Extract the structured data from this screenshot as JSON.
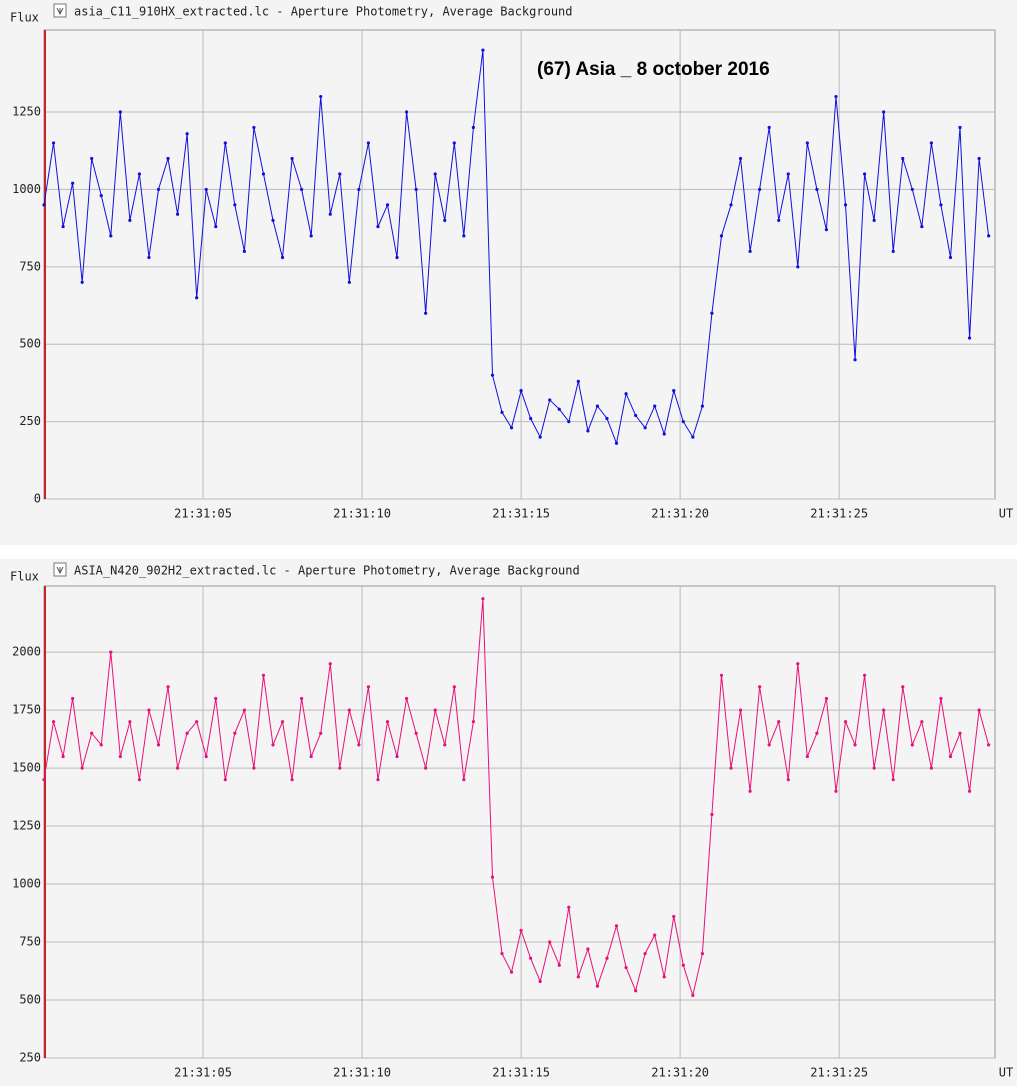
{
  "chart_data": [
    {
      "type": "line",
      "title": "asia_C11_910HX_extracted.lc - Aperture Photometry, Average Background",
      "y_label": "Flux",
      "x_label": "UT",
      "annotation": "(67) Asia _ 8 october 2016",
      "xlim": [
        0,
        29.9
      ],
      "ylim": [
        0,
        1515
      ],
      "xticks": [
        {
          "value": 5,
          "label": "21:31:05"
        },
        {
          "value": 10,
          "label": "21:31:10"
        },
        {
          "value": 15,
          "label": "21:31:15"
        },
        {
          "value": 20,
          "label": "21:31:20"
        },
        {
          "value": 25,
          "label": "21:31:25"
        }
      ],
      "yticks": [
        0,
        250,
        500,
        750,
        1000,
        1250
      ],
      "grid": true,
      "x": [
        0.0,
        0.3,
        0.6,
        0.9,
        1.2,
        1.5,
        1.8,
        2.1,
        2.4,
        2.7,
        3.0,
        3.3,
        3.6,
        3.9,
        4.2,
        4.5,
        4.8,
        5.1,
        5.4,
        5.7,
        6.0,
        6.3,
        6.6,
        6.9,
        7.2,
        7.5,
        7.8,
        8.1,
        8.4,
        8.7,
        9.0,
        9.3,
        9.6,
        9.9,
        10.2,
        10.5,
        10.8,
        11.1,
        11.4,
        11.7,
        12.0,
        12.3,
        12.6,
        12.9,
        13.2,
        13.5,
        13.8,
        14.1,
        14.4,
        14.7,
        15.0,
        15.3,
        15.6,
        15.9,
        16.2,
        16.5,
        16.8,
        17.1,
        17.4,
        17.7,
        18.0,
        18.3,
        18.6,
        18.9,
        19.2,
        19.5,
        19.8,
        20.1,
        20.4,
        20.7,
        21.0,
        21.3,
        21.6,
        21.9,
        22.2,
        22.5,
        22.8,
        23.1,
        23.4,
        23.7,
        24.0,
        24.3,
        24.6,
        24.9,
        25.2,
        25.5,
        25.8,
        26.1,
        26.4,
        26.7,
        27.0,
        27.3,
        27.6,
        27.9,
        28.2,
        28.5,
        28.8,
        29.1,
        29.4,
        29.7
      ],
      "series": [
        {
          "color": "#1010dd",
          "values": [
            950,
            1150,
            880,
            1020,
            700,
            1100,
            980,
            850,
            1250,
            900,
            1050,
            780,
            1000,
            1100,
            920,
            1180,
            650,
            1000,
            880,
            1150,
            950,
            800,
            1200,
            1050,
            900,
            780,
            1100,
            1000,
            850,
            1300,
            920,
            1050,
            700,
            1000,
            1150,
            880,
            950,
            780,
            1250,
            1000,
            600,
            1050,
            900,
            1150,
            850,
            1200,
            1450,
            400,
            280,
            230,
            350,
            260,
            200,
            320,
            290,
            250,
            380,
            220,
            300,
            260,
            180,
            340,
            270,
            230,
            300,
            210,
            350,
            250,
            200,
            300,
            600,
            850,
            950,
            1100,
            800,
            1000,
            1200,
            900,
            1050,
            750,
            1150,
            1000,
            870,
            1300,
            950,
            450,
            1050,
            900,
            1250,
            800,
            1100,
            1000,
            880,
            1150,
            950,
            780,
            1200,
            520,
            1100,
            850
          ]
        }
      ]
    },
    {
      "type": "line",
      "title": "ASIA_N420_902H2_extracted.lc - Aperture Photometry, Average Background",
      "y_label": "Flux",
      "x_label": "UT",
      "xlim": [
        0,
        29.9
      ],
      "ylim": [
        250,
        2285
      ],
      "xticks": [
        {
          "value": 5,
          "label": "21:31:05"
        },
        {
          "value": 10,
          "label": "21:31:10"
        },
        {
          "value": 15,
          "label": "21:31:15"
        },
        {
          "value": 20,
          "label": "21:31:20"
        },
        {
          "value": 25,
          "label": "21:31:25"
        }
      ],
      "yticks": [
        250,
        500,
        750,
        1000,
        1250,
        1500,
        1750,
        2000
      ],
      "grid": true,
      "x": [
        0.0,
        0.3,
        0.6,
        0.9,
        1.2,
        1.5,
        1.8,
        2.1,
        2.4,
        2.7,
        3.0,
        3.3,
        3.6,
        3.9,
        4.2,
        4.5,
        4.8,
        5.1,
        5.4,
        5.7,
        6.0,
        6.3,
        6.6,
        6.9,
        7.2,
        7.5,
        7.8,
        8.1,
        8.4,
        8.7,
        9.0,
        9.3,
        9.6,
        9.9,
        10.2,
        10.5,
        10.8,
        11.1,
        11.4,
        11.7,
        12.0,
        12.3,
        12.6,
        12.9,
        13.2,
        13.5,
        13.8,
        14.1,
        14.4,
        14.7,
        15.0,
        15.3,
        15.6,
        15.9,
        16.2,
        16.5,
        16.8,
        17.1,
        17.4,
        17.7,
        18.0,
        18.3,
        18.6,
        18.9,
        19.2,
        19.5,
        19.8,
        20.1,
        20.4,
        20.7,
        21.0,
        21.3,
        21.6,
        21.9,
        22.2,
        22.5,
        22.8,
        23.1,
        23.4,
        23.7,
        24.0,
        24.3,
        24.6,
        24.9,
        25.2,
        25.5,
        25.8,
        26.1,
        26.4,
        26.7,
        27.0,
        27.3,
        27.6,
        27.9,
        28.2,
        28.5,
        28.8,
        29.1,
        29.4,
        29.7
      ],
      "series": [
        {
          "color": "#e8107a",
          "values": [
            1450,
            1700,
            1550,
            1800,
            1500,
            1650,
            1600,
            2000,
            1550,
            1700,
            1450,
            1750,
            1600,
            1850,
            1500,
            1650,
            1700,
            1550,
            1800,
            1450,
            1650,
            1750,
            1500,
            1900,
            1600,
            1700,
            1450,
            1800,
            1550,
            1650,
            1950,
            1500,
            1750,
            1600,
            1850,
            1450,
            1700,
            1550,
            1800,
            1650,
            1500,
            1750,
            1600,
            1850,
            1450,
            1700,
            2230,
            1030,
            700,
            620,
            800,
            680,
            580,
            750,
            650,
            900,
            600,
            720,
            560,
            680,
            820,
            640,
            540,
            700,
            780,
            600,
            860,
            650,
            520,
            700,
            1300,
            1900,
            1500,
            1750,
            1400,
            1850,
            1600,
            1700,
            1450,
            1950,
            1550,
            1650,
            1800,
            1400,
            1700,
            1600,
            1900,
            1500,
            1750,
            1450,
            1850,
            1600,
            1700,
            1500,
            1800,
            1550,
            1650,
            1400,
            1750,
            1600
          ]
        }
      ]
    }
  ]
}
